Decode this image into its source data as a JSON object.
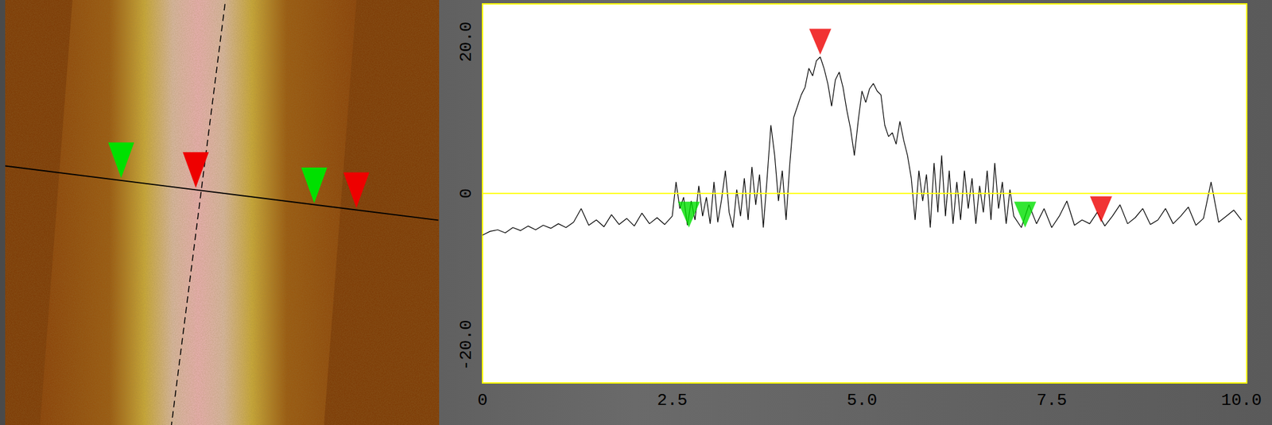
{
  "chart_data": {
    "type": "line",
    "x": [
      0,
      0.1,
      0.2,
      0.3,
      0.4,
      0.5,
      0.6,
      0.7,
      0.8,
      0.9,
      1.0,
      1.1,
      1.2,
      1.3,
      1.4,
      1.5,
      1.6,
      1.7,
      1.8,
      1.9,
      2.0,
      2.1,
      2.2,
      2.3,
      2.4,
      2.5,
      2.55,
      2.6,
      2.65,
      2.7,
      2.75,
      2.8,
      2.85,
      2.9,
      2.95,
      3.0,
      3.05,
      3.1,
      3.15,
      3.2,
      3.25,
      3.3,
      3.35,
      3.4,
      3.45,
      3.5,
      3.55,
      3.6,
      3.65,
      3.7,
      3.75,
      3.8,
      3.85,
      3.9,
      3.95,
      4.0,
      4.05,
      4.1,
      4.15,
      4.2,
      4.25,
      4.3,
      4.35,
      4.4,
      4.45,
      4.5,
      4.55,
      4.6,
      4.65,
      4.7,
      4.75,
      4.8,
      4.85,
      4.9,
      4.95,
      5.0,
      5.05,
      5.1,
      5.15,
      5.2,
      5.25,
      5.3,
      5.35,
      5.4,
      5.45,
      5.5,
      5.55,
      5.6,
      5.65,
      5.7,
      5.75,
      5.8,
      5.85,
      5.9,
      5.95,
      6.0,
      6.05,
      6.1,
      6.15,
      6.2,
      6.25,
      6.3,
      6.35,
      6.4,
      6.45,
      6.5,
      6.55,
      6.6,
      6.65,
      6.7,
      6.75,
      6.8,
      6.85,
      6.9,
      6.95,
      7.0,
      7.1,
      7.2,
      7.3,
      7.4,
      7.5,
      7.6,
      7.7,
      7.8,
      7.9,
      8.0,
      8.1,
      8.2,
      8.3,
      8.4,
      8.5,
      8.6,
      8.7,
      8.8,
      8.9,
      9.0,
      9.1,
      9.2,
      9.3,
      9.4,
      9.5,
      9.6,
      9.7,
      9.8,
      9.9,
      10.0
    ],
    "values": [
      -5.5,
      -5.0,
      -4.8,
      -5.2,
      -4.5,
      -4.9,
      -4.3,
      -4.8,
      -4.2,
      -4.6,
      -4.0,
      -4.5,
      -3.8,
      -2.0,
      -4.2,
      -3.5,
      -4.4,
      -2.8,
      -4.1,
      -3.3,
      -4.3,
      -2.6,
      -4.0,
      -3.2,
      -4.1,
      -3.0,
      1.5,
      -2.0,
      -0.5,
      -4.2,
      -1.0,
      -3.5,
      1.0,
      -3.0,
      -0.5,
      -4.0,
      1.5,
      -3.8,
      -0.8,
      3.0,
      -2.5,
      -4.5,
      0.5,
      -3.0,
      2.0,
      -3.5,
      3.5,
      -1.5,
      2.5,
      -4.5,
      2.0,
      9.0,
      5.0,
      -1.0,
      3.0,
      -3.5,
      4.0,
      10.0,
      11.5,
      13.0,
      14.0,
      16.5,
      15.5,
      17.5,
      18.0,
      16.5,
      14.5,
      11.5,
      15.0,
      16.0,
      14.0,
      11.0,
      8.5,
      5.0,
      9.5,
      13.5,
      12.0,
      13.8,
      14.5,
      13.5,
      13.0,
      9.0,
      7.5,
      8.0,
      6.5,
      9.5,
      7.0,
      5.0,
      2.0,
      -3.5,
      3.0,
      -1.0,
      2.5,
      -4.5,
      4.0,
      -2.5,
      5.0,
      -3.0,
      3.0,
      -4.0,
      1.5,
      -3.5,
      3.0,
      -2.0,
      2.0,
      -4.0,
      1.0,
      -2.5,
      3.0,
      -3.5,
      4.0,
      -2.0,
      1.5,
      -4.0,
      0.5,
      -3.0,
      -4.5,
      -1.5,
      -4.0,
      -2.0,
      -4.5,
      -3.0,
      -1.0,
      -4.2,
      -3.5,
      -4.0,
      -2.5,
      -4.3,
      -3.0,
      -1.5,
      -4.0,
      -3.2,
      -2.0,
      -4.1,
      -3.5,
      -2.0,
      -4.0,
      -3.0,
      -1.8,
      -4.2,
      -3.3,
      1.5,
      -3.8,
      -3.0,
      -2.2,
      -3.5
    ],
    "color": "#000000",
    "xlim": [
      0,
      10.07
    ],
    "xticks": [
      0,
      2.5,
      {
        "value": 5,
        "label": "5.0"
      },
      7.5,
      {
        "value": 10,
        "label": "10.0"
      }
    ],
    "ylim": [
      -25,
      25
    ],
    "yticks": [
      {
        "value": -20,
        "label": "-20.0"
      },
      0,
      {
        "value": 20,
        "label": "20.0"
      }
    ],
    "grid": false,
    "baseline": 0,
    "cursors": [
      {
        "x": 2.72,
        "y": -4.5,
        "color": "#00e000"
      },
      {
        "x": 4.45,
        "y": 18.3,
        "color": "#ee0000"
      },
      {
        "x": 7.15,
        "y": -4.5,
        "color": "#00e000"
      },
      {
        "x": 8.15,
        "y": -3.8,
        "color": "#ee0000"
      }
    ]
  }
}
